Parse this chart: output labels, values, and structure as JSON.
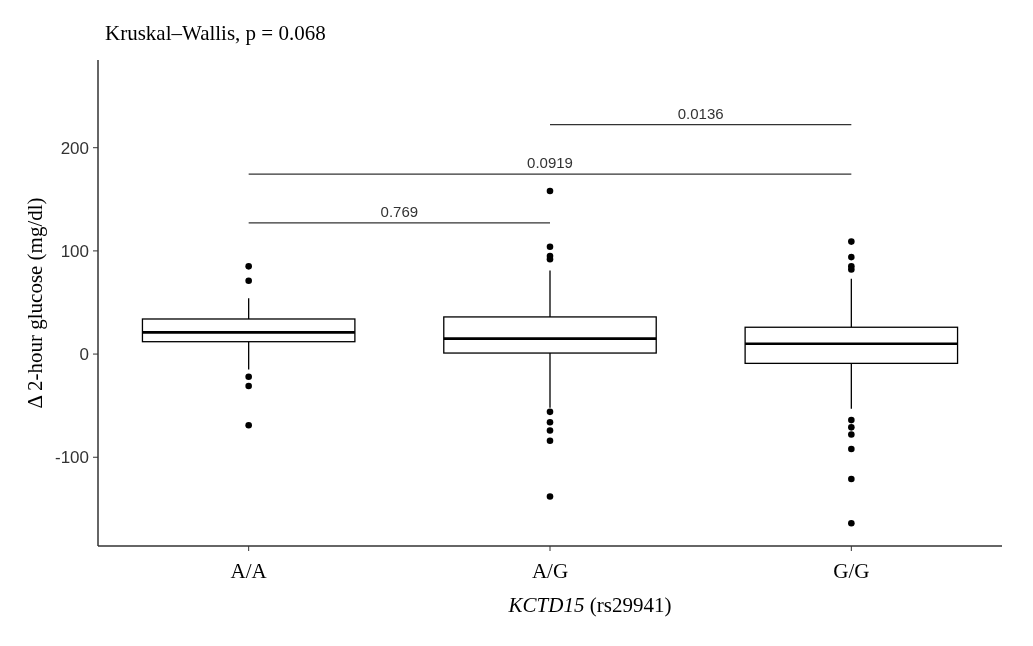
{
  "chart_data": {
    "type": "box",
    "title": "Kruskal–Wallis, p = 0.068",
    "xlabel": "KCTD15 (rs29941)",
    "ylabel": "Δ 2-hour glucose (mg/dl)",
    "categories": [
      "A/A",
      "A/G",
      "G/G"
    ],
    "boxes": [
      {
        "low": -15,
        "q1": 12,
        "median": 21,
        "q3": 34,
        "high": 54,
        "outliers": [
          85,
          71,
          -22,
          -31,
          -69
        ]
      },
      {
        "low": -52,
        "q1": 1,
        "median": 15,
        "q3": 36,
        "high": 81,
        "outliers": [
          158,
          104,
          95,
          92,
          -56,
          -66,
          -74,
          -84,
          -138
        ]
      },
      {
        "low": -53,
        "q1": -9,
        "median": 10,
        "q3": 26,
        "high": 73,
        "outliers": [
          109,
          94,
          85,
          82,
          -64,
          -71,
          -78,
          -92,
          -121,
          -164
        ]
      }
    ],
    "ylim": [
      -186,
      285
    ],
    "yticks": [
      -100,
      0,
      100,
      200
    ],
    "grid": false,
    "color": "#000000",
    "annotations": [
      "0.769",
      "0.0919",
      "0.0136"
    ]
  }
}
